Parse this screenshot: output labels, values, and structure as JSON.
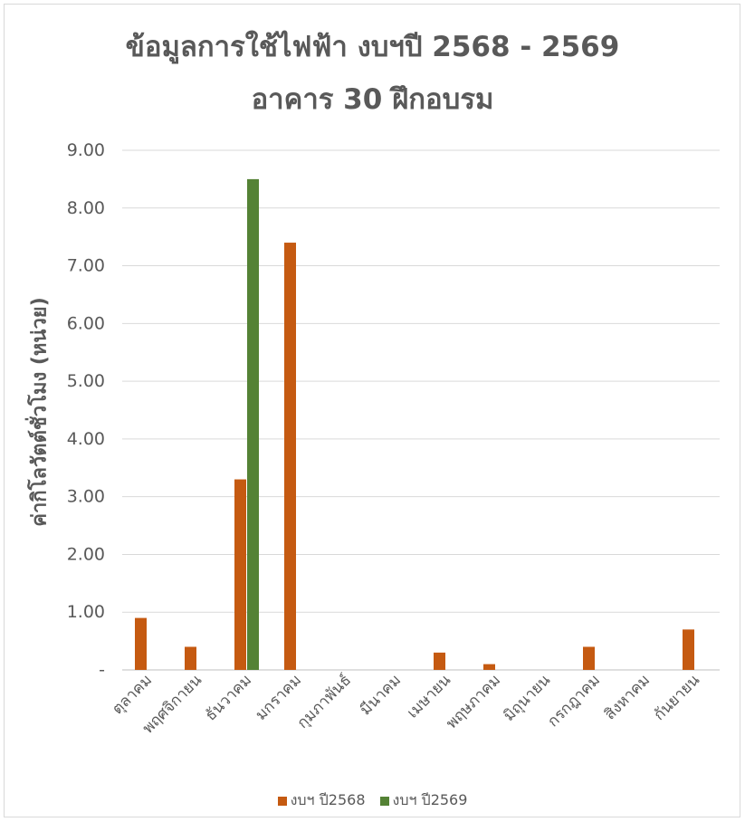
{
  "chart_data": {
    "type": "bar",
    "title": "ข้อมูลการใช้ไฟฟ้า งบฯปี 2568 - 2569",
    "subtitle": "อาคาร 30 ฝึกอบรม",
    "ylabel": "ค่ากิโลวัตต์ชั่วโมง (หน่วย)",
    "xlabel": "",
    "ylim": [
      0,
      9
    ],
    "yticks": [
      "-",
      "1.00",
      "2.00",
      "3.00",
      "4.00",
      "5.00",
      "6.00",
      "7.00",
      "8.00",
      "9.00"
    ],
    "grid": true,
    "legend_position": "bottom",
    "categories": [
      "ตุลาคม",
      "พฤศจิกายน",
      "ธันวาคม",
      "มกราคม",
      "กุมภาพันธ์",
      "มีนาคม",
      "เมษายน",
      "พฤษภาคม",
      "มิถุนายน",
      "กรกฎาคม",
      "สิงหาคม",
      "กันยายน"
    ],
    "series": [
      {
        "name": "งบฯ ปี2568",
        "color": "#c55a11",
        "values": [
          0.9,
          0.4,
          3.3,
          7.4,
          0,
          0,
          0.3,
          0.1,
          0,
          0.4,
          0,
          0.7
        ]
      },
      {
        "name": "งบฯ ปี2569",
        "color": "#548235",
        "values": [
          0,
          0,
          8.5,
          0,
          0,
          0,
          0,
          0,
          0,
          0,
          0,
          0
        ]
      }
    ]
  }
}
